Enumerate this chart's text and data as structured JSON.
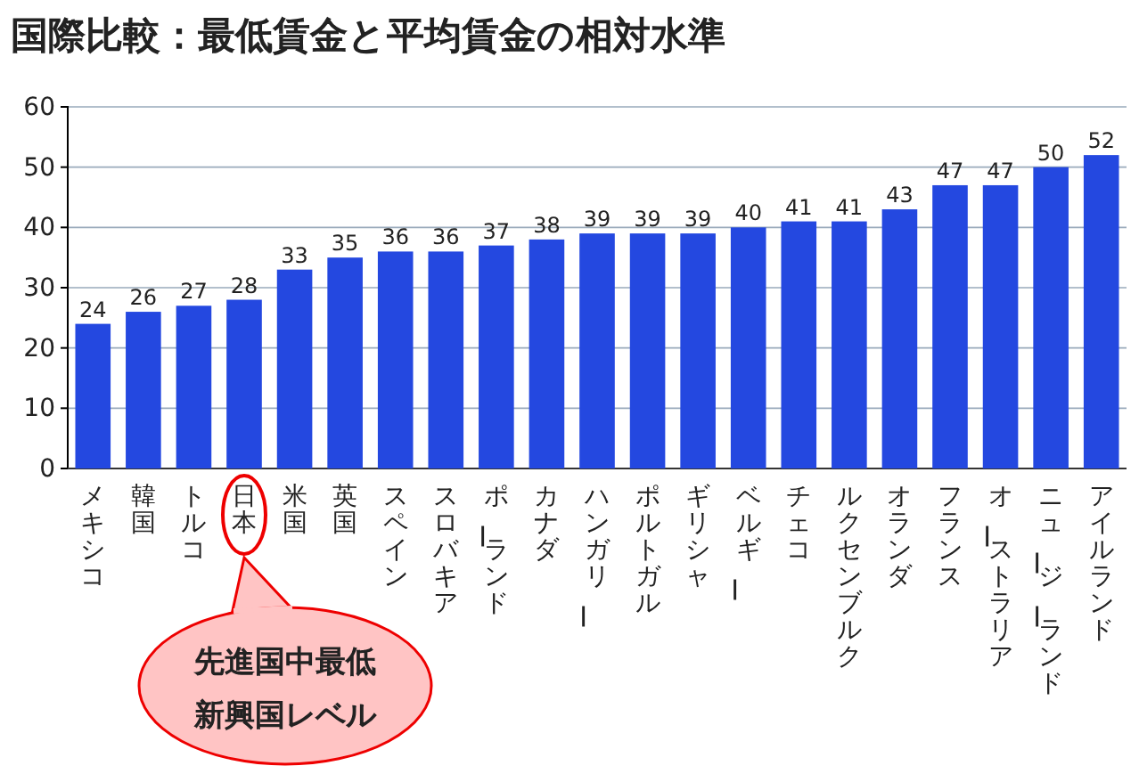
{
  "chart_data": {
    "type": "bar",
    "title": "国際比較：最低賃金と平均賃金の相対水準",
    "categories": [
      "メキシコ",
      "韓国",
      "トルコ",
      "日本",
      "米国",
      "英国",
      "スペイン",
      "スロバキア",
      "ポーランド",
      "カナダ",
      "ハンガリー",
      "ポルトガル",
      "ギリシャ",
      "ベルギー",
      "チェコ",
      "ルクセンブルク",
      "オランダ",
      "フランス",
      "オーストラリア",
      "ニュージーランド",
      "アイルランド"
    ],
    "values": [
      24,
      26,
      27,
      28,
      33,
      35,
      36,
      36,
      37,
      38,
      39,
      39,
      39,
      40,
      41,
      41,
      43,
      47,
      47,
      50,
      52
    ],
    "color": "#2448e0",
    "ylim": [
      0,
      60
    ],
    "yticks": [
      0,
      10,
      20,
      30,
      40,
      50,
      60
    ],
    "grid": "y",
    "data_labels": true,
    "annotations": [
      "先進国中最低",
      "新興国レベル"
    ]
  }
}
